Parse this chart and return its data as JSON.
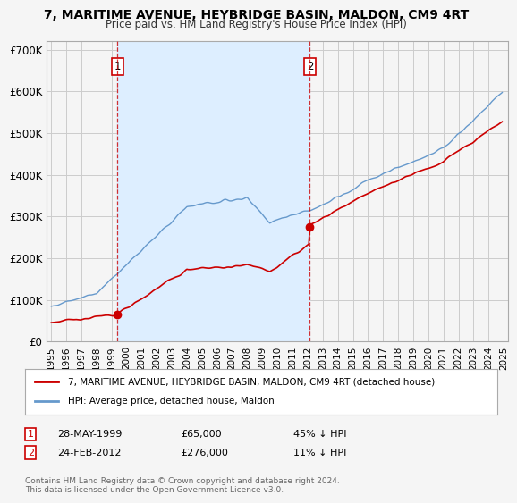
{
  "title": "7, MARITIME AVENUE, HEYBRIDGE BASIN, MALDON, CM9 4RT",
  "subtitle": "Price paid vs. HM Land Registry's House Price Index (HPI)",
  "xlim_start": 1994.7,
  "xlim_end": 2025.3,
  "ylim_min": 0,
  "ylim_max": 720000,
  "yticks": [
    0,
    100000,
    200000,
    300000,
    400000,
    500000,
    600000,
    700000
  ],
  "ytick_labels": [
    "£0",
    "£100K",
    "£200K",
    "£300K",
    "£400K",
    "£500K",
    "£600K",
    "£700K"
  ],
  "sale1_x": 1999.4,
  "sale1_y": 65000,
  "sale2_x": 2012.15,
  "sale2_y": 276000,
  "red_line_color": "#cc0000",
  "blue_line_color": "#6699cc",
  "shade_color": "#ddeeff",
  "vline_color": "#cc0000",
  "grid_color": "#cccccc",
  "bg_color": "#f5f5f5",
  "plot_bg_color": "#f5f5f5",
  "legend_label1": "7, MARITIME AVENUE, HEYBRIDGE BASIN, MALDON, CM9 4RT (detached house)",
  "legend_label2": "HPI: Average price, detached house, Maldon",
  "annotation1_date": "28-MAY-1999",
  "annotation1_price": "£65,000",
  "annotation1_hpi": "45% ↓ HPI",
  "annotation2_date": "24-FEB-2012",
  "annotation2_price": "£276,000",
  "annotation2_hpi": "11% ↓ HPI",
  "footnote": "Contains HM Land Registry data © Crown copyright and database right 2024.\nThis data is licensed under the Open Government Licence v3.0."
}
